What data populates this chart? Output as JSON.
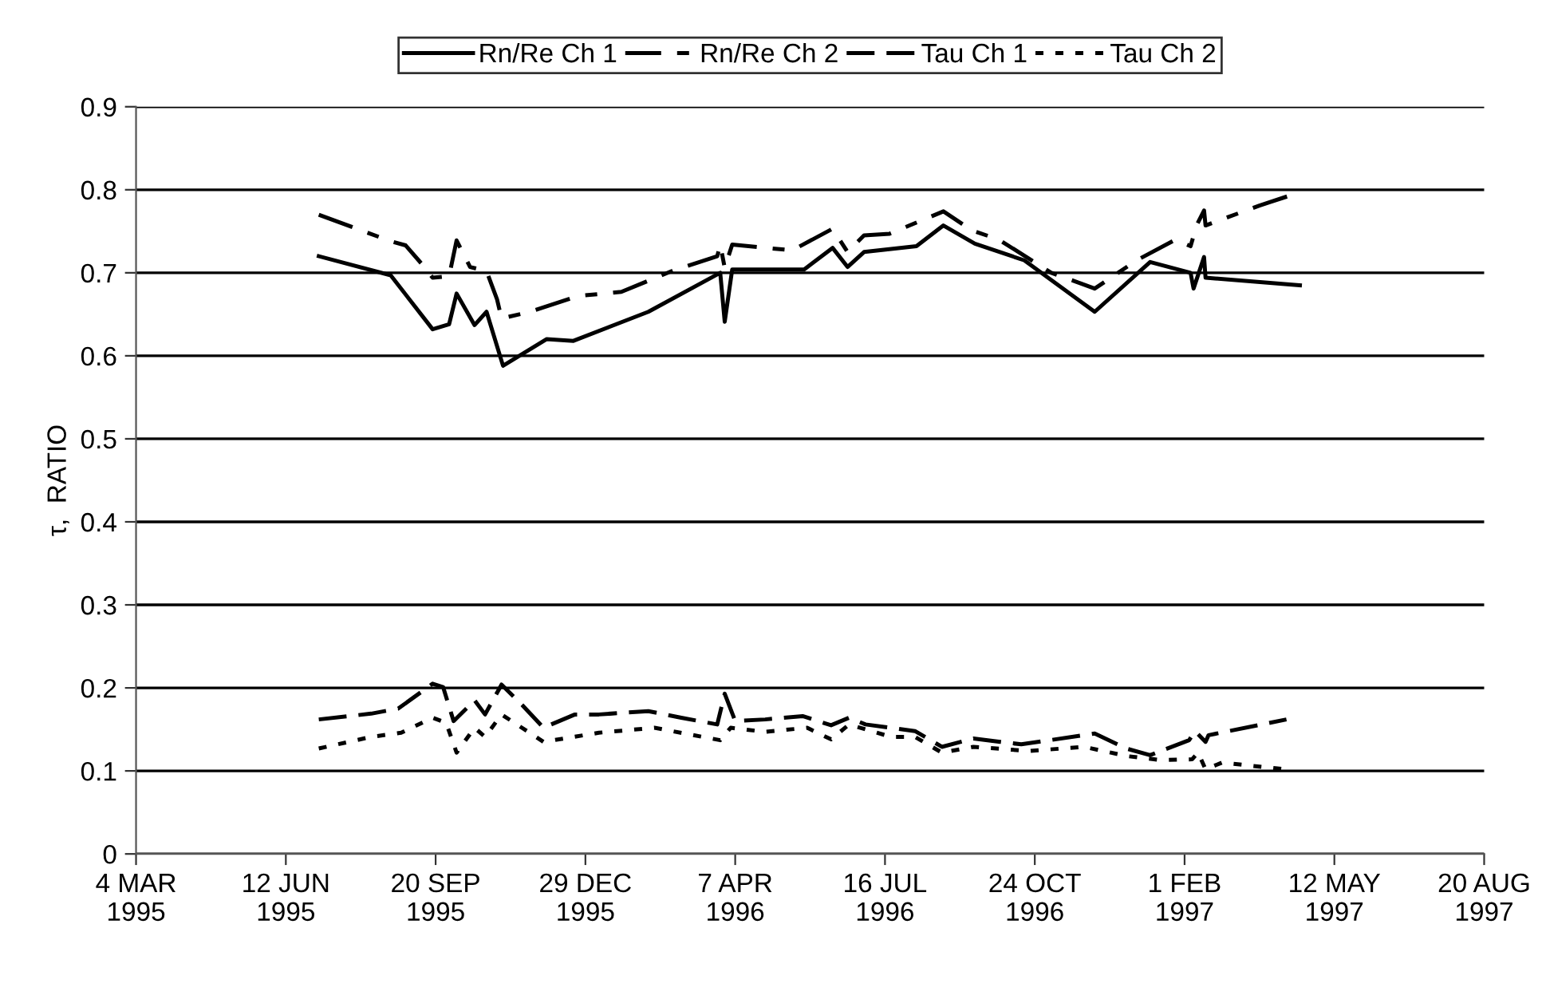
{
  "chart_data": {
    "type": "line",
    "ylabel": "τ,  RATIO",
    "legend": "top",
    "grid": "y",
    "marker": "none",
    "xlim": [
      "1995-03-04",
      "1997-08-20"
    ],
    "xticks": [
      {
        "value": "1995-03-04",
        "label": "4 MAR\n1995"
      },
      {
        "value": "1995-06-12",
        "label": "12 JUN\n1995"
      },
      {
        "value": "1995-09-20",
        "label": "20 SEP\n1995"
      },
      {
        "value": "1995-12-29",
        "label": "29 DEC\n1995"
      },
      {
        "value": "1996-04-07",
        "label": "7 APR\n1996"
      },
      {
        "value": "1996-07-16",
        "label": "16 JUL\n1996"
      },
      {
        "value": "1996-10-24",
        "label": "24 OCT\n1996"
      },
      {
        "value": "1997-02-01",
        "label": "1 FEB\n1997"
      },
      {
        "value": "1997-05-12",
        "label": "12 MAY\n1997"
      },
      {
        "value": "1997-08-20",
        "label": "20 AUG\n1997"
      }
    ],
    "ylim": [
      0,
      0.9
    ],
    "yticks": [
      0,
      0.1,
      0.2,
      0.3,
      0.4,
      0.5,
      0.6,
      0.7,
      0.8,
      0.9
    ],
    "series": [
      {
        "name": "Rn/Re Ch 1",
        "color": "#000000",
        "line_style": "solid",
        "x": [
          "1995-07-04",
          "1995-08-21",
          "1995-09-18",
          "1995-09-29",
          "1995-10-04",
          "1995-10-16",
          "1995-10-24",
          "1995-11-04",
          "1995-12-03",
          "1995-12-21",
          "1996-02-09",
          "1996-03-28",
          "1996-03-31",
          "1996-04-05",
          "1996-05-23",
          "1996-06-11",
          "1996-06-21",
          "1996-07-02",
          "1996-08-06",
          "1996-08-24",
          "1996-09-14",
          "1996-10-17",
          "1996-12-03",
          "1997-01-09",
          "1997-02-05",
          "1997-02-07",
          "1997-02-14",
          "1997-02-15",
          "1997-04-19"
        ],
        "values": [
          0.72,
          0.697,
          0.632,
          0.638,
          0.675,
          0.637,
          0.653,
          0.588,
          0.62,
          0.618,
          0.653,
          0.7,
          0.641,
          0.704,
          0.704,
          0.73,
          0.707,
          0.725,
          0.732,
          0.757,
          0.735,
          0.715,
          0.653,
          0.713,
          0.7,
          0.681,
          0.719,
          0.694,
          0.685
        ]
      },
      {
        "name": "Rn/Re Ch 2",
        "color": "#000000",
        "line_style": "dashdot",
        "x": [
          "1995-07-04",
          "1995-08-21",
          "1995-08-31",
          "1995-09-13",
          "1995-09-18",
          "1995-09-29",
          "1995-10-04",
          "1995-10-13",
          "1995-10-24",
          "1995-10-31",
          "1995-11-03",
          "1995-11-22",
          "1995-12-24",
          "1996-01-22",
          "1996-02-26",
          "1996-03-26",
          "1996-03-28",
          "1996-03-31",
          "1996-04-05",
          "1996-05-15",
          "1996-06-11",
          "1996-06-21",
          "1996-07-02",
          "1996-07-19",
          "1996-08-24",
          "1996-09-12",
          "1996-09-30",
          "1996-11-04",
          "1996-12-03",
          "1996-12-31",
          "1997-01-26",
          "1997-02-05",
          "1997-02-09",
          "1997-02-14",
          "1997-02-15",
          "1997-03-23",
          "1997-04-19"
        ],
        "values": [
          0.77,
          0.738,
          0.733,
          0.706,
          0.694,
          0.696,
          0.739,
          0.707,
          0.702,
          0.668,
          0.645,
          0.653,
          0.672,
          0.677,
          0.703,
          0.72,
          0.734,
          0.706,
          0.734,
          0.727,
          0.753,
          0.725,
          0.745,
          0.747,
          0.774,
          0.751,
          0.74,
          0.7,
          0.681,
          0.715,
          0.74,
          0.732,
          0.757,
          0.775,
          0.757,
          0.781,
          0.797
        ]
      },
      {
        "name": "Tau Ch 1",
        "color": "#000000",
        "line_style": "dashed",
        "x": [
          "1995-07-04",
          "1995-08-08",
          "1995-08-26",
          "1995-09-18",
          "1995-09-25",
          "1995-10-02",
          "1995-10-16",
          "1995-10-23",
          "1995-11-03",
          "1995-11-17",
          "1995-12-01",
          "1995-12-22",
          "1996-01-07",
          "1996-02-09",
          "1996-03-02",
          "1996-03-26",
          "1996-03-31",
          "1996-04-07",
          "1996-04-27",
          "1996-05-22",
          "1996-06-10",
          "1996-06-22",
          "1996-07-03",
          "1996-07-20",
          "1996-08-05",
          "1996-08-23",
          "1996-09-13",
          "1996-10-01",
          "1996-10-15",
          "1996-11-03",
          "1996-12-03",
          "1996-12-24",
          "1997-01-09",
          "1997-02-04",
          "1997-02-08",
          "1997-02-15",
          "1997-02-17",
          "1997-04-10"
        ],
        "values": [
          0.162,
          0.169,
          0.175,
          0.205,
          0.201,
          0.16,
          0.185,
          0.168,
          0.204,
          0.179,
          0.152,
          0.168,
          0.168,
          0.172,
          0.164,
          0.156,
          0.193,
          0.16,
          0.162,
          0.166,
          0.155,
          0.164,
          0.156,
          0.152,
          0.148,
          0.129,
          0.139,
          0.135,
          0.132,
          0.137,
          0.145,
          0.127,
          0.119,
          0.137,
          0.148,
          0.135,
          0.143,
          0.162
        ]
      },
      {
        "name": "Tau Ch 2",
        "color": "#000000",
        "line_style": "dotted",
        "x": [
          "1995-07-04",
          "1995-08-08",
          "1995-08-28",
          "1995-09-18",
          "1995-09-27",
          "1995-10-04",
          "1995-10-16",
          "1995-10-23",
          "1995-11-03",
          "1995-12-01",
          "1996-01-07",
          "1996-02-13",
          "1996-03-28",
          "1996-04-04",
          "1996-04-27",
          "1996-05-25",
          "1996-06-10",
          "1996-06-22",
          "1996-07-20",
          "1996-08-05",
          "1996-08-23",
          "1996-09-13",
          "1996-10-20",
          "1996-11-26",
          "1996-12-24",
          "1997-01-16",
          "1997-02-06",
          "1997-02-10",
          "1997-02-15",
          "1997-02-26",
          "1997-04-14"
        ],
        "values": [
          0.127,
          0.141,
          0.146,
          0.164,
          0.158,
          0.122,
          0.152,
          0.141,
          0.168,
          0.135,
          0.146,
          0.152,
          0.137,
          0.152,
          0.147,
          0.152,
          0.138,
          0.156,
          0.141,
          0.141,
          0.122,
          0.129,
          0.124,
          0.129,
          0.118,
          0.113,
          0.114,
          0.122,
          0.102,
          0.11,
          0.101
        ]
      }
    ]
  }
}
